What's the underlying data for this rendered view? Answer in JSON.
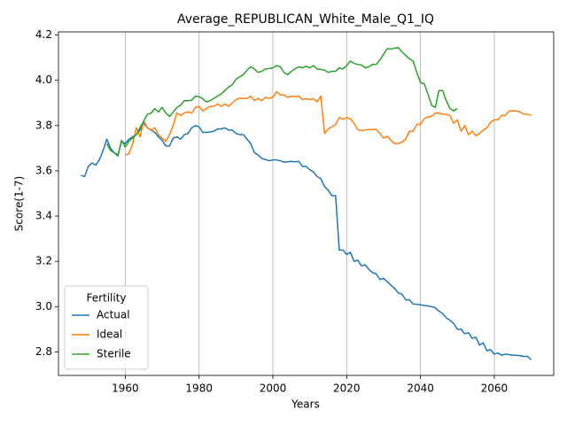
{
  "chart_data": {
    "type": "line",
    "title": "Average_REPUBLICAN_White_Male_Q1_IQ",
    "xlabel": "Years",
    "ylabel": "Score(1-7)",
    "legend_title": "Fertility",
    "legend": "lower left",
    "grid": "x",
    "xlim": [
      1941.9,
      2076.1
    ],
    "ylim": [
      2.696,
      4.214
    ],
    "xticks": [
      1960,
      1980,
      2000,
      2020,
      2040,
      2060
    ],
    "yticks": [
      2.8,
      {
        "value": 3,
        "label": "3.0"
      },
      3.2,
      3.4,
      3.6,
      3.8,
      {
        "value": 4,
        "label": "4.0"
      },
      4.2
    ],
    "x": [
      1948,
      1949,
      1950,
      1951,
      1952,
      1953,
      1954,
      1955,
      1956,
      1957,
      1958,
      1959,
      1960,
      1961,
      1962,
      1963,
      1964,
      1965,
      1966,
      1967,
      1968,
      1969,
      1970,
      1971,
      1972,
      1973,
      1974,
      1975,
      1976,
      1977,
      1978,
      1979,
      1980,
      1981,
      1982,
      1983,
      1984,
      1985,
      1986,
      1987,
      1988,
      1989,
      1990,
      1991,
      1992,
      1993,
      1994,
      1995,
      1996,
      1997,
      1998,
      1999,
      2000,
      2001,
      2002,
      2003,
      2004,
      2005,
      2006,
      2007,
      2008,
      2009,
      2010,
      2011,
      2012,
      2013,
      2014,
      2015,
      2016,
      2017,
      2018,
      2019,
      2020,
      2021,
      2022,
      2023,
      2024,
      2025,
      2026,
      2027,
      2028,
      2029,
      2030,
      2031,
      2032,
      2033,
      2034,
      2035,
      2036,
      2037,
      2038,
      2039,
      2040,
      2041,
      2042,
      2043,
      2044,
      2045,
      2046,
      2047,
      2048,
      2049,
      2050,
      2051,
      2052,
      2053,
      2054,
      2055,
      2056,
      2057,
      2058,
      2059,
      2060,
      2061,
      2062,
      2063,
      2064,
      2065,
      2066,
      2067,
      2068,
      2069,
      2070
    ],
    "series": [
      {
        "name": "Actual",
        "color": "#1f77b4",
        "values": [
          3.58,
          3.575,
          3.62,
          3.635,
          3.625,
          3.65,
          3.69,
          3.74,
          3.7,
          3.68,
          3.67,
          3.73,
          3.72,
          3.74,
          3.75,
          3.76,
          3.78,
          3.81,
          3.79,
          3.78,
          3.77,
          3.75,
          3.735,
          3.71,
          3.71,
          3.745,
          3.75,
          3.74,
          3.76,
          3.765,
          3.79,
          3.8,
          3.795,
          3.77,
          3.77,
          3.772,
          3.775,
          3.785,
          3.785,
          3.79,
          3.78,
          3.78,
          3.765,
          3.76,
          3.76,
          3.74,
          3.72,
          3.68,
          3.67,
          3.655,
          3.65,
          3.645,
          3.648,
          3.648,
          3.645,
          3.638,
          3.64,
          3.642,
          3.64,
          3.642,
          3.62,
          3.62,
          3.605,
          3.595,
          3.575,
          3.565,
          3.53,
          3.515,
          3.49,
          3.49,
          3.25,
          3.25,
          3.23,
          3.24,
          3.2,
          3.205,
          3.18,
          3.185,
          3.165,
          3.15,
          3.145,
          3.12,
          3.125,
          3.11,
          3.095,
          3.08,
          3.06,
          3.055,
          3.03,
          3.03,
          3.012,
          3.01,
          3.008,
          3.005,
          3.003,
          3.0,
          2.995,
          2.98,
          2.97,
          2.95,
          2.94,
          2.925,
          2.9,
          2.9,
          2.88,
          2.885,
          2.86,
          2.865,
          2.83,
          2.84,
          2.805,
          2.81,
          2.79,
          2.795,
          2.785,
          2.79,
          2.788,
          2.785,
          2.785,
          2.783,
          2.78,
          2.78,
          2.765
        ]
      },
      {
        "name": "Ideal",
        "color": "#ff7f0e",
        "values": [
          null,
          null,
          null,
          null,
          null,
          null,
          null,
          null,
          null,
          null,
          null,
          null,
          3.67,
          3.675,
          3.72,
          3.79,
          3.75,
          3.82,
          3.79,
          3.78,
          3.79,
          3.76,
          3.745,
          3.73,
          3.76,
          3.8,
          3.855,
          3.845,
          3.855,
          3.86,
          3.855,
          3.88,
          3.885,
          3.865,
          3.875,
          3.885,
          3.885,
          3.895,
          3.885,
          3.895,
          3.885,
          3.9,
          3.915,
          3.92,
          3.92,
          3.92,
          3.93,
          3.91,
          3.92,
          3.91,
          3.925,
          3.92,
          3.925,
          3.95,
          3.935,
          3.935,
          3.925,
          3.93,
          3.928,
          3.93,
          3.915,
          3.918,
          3.915,
          3.918,
          3.905,
          3.93,
          3.765,
          3.785,
          3.795,
          3.805,
          3.835,
          3.828,
          3.835,
          3.83,
          3.81,
          3.782,
          3.778,
          3.78,
          3.783,
          3.782,
          3.783,
          3.765,
          3.745,
          3.752,
          3.735,
          3.72,
          3.72,
          3.728,
          3.74,
          3.775,
          3.775,
          3.805,
          3.805,
          3.83,
          3.838,
          3.84,
          3.855,
          3.855,
          3.85,
          3.85,
          3.845,
          3.81,
          3.825,
          3.775,
          3.8,
          3.76,
          3.775,
          3.755,
          3.765,
          3.78,
          3.79,
          3.815,
          3.825,
          3.825,
          3.845,
          3.845,
          3.865,
          3.865,
          3.865,
          3.86,
          3.85,
          3.85,
          3.845
        ]
      },
      {
        "name": "Sterile",
        "color": "#2ca02c",
        "values": [
          null,
          null,
          null,
          null,
          null,
          null,
          null,
          3.72,
          3.69,
          3.68,
          3.665,
          3.735,
          3.705,
          3.73,
          3.745,
          3.76,
          3.79,
          3.82,
          3.85,
          3.855,
          3.875,
          3.86,
          3.88,
          3.855,
          3.84,
          3.86,
          3.88,
          3.89,
          3.91,
          3.91,
          3.912,
          3.93,
          3.928,
          3.918,
          3.905,
          3.91,
          3.92,
          3.93,
          3.94,
          3.955,
          3.97,
          3.98,
          4.005,
          4.015,
          4.025,
          4.045,
          4.06,
          4.05,
          4.035,
          4.04,
          4.05,
          4.052,
          4.055,
          4.065,
          4.06,
          4.035,
          4.025,
          4.04,
          4.05,
          4.06,
          4.055,
          4.062,
          4.055,
          4.065,
          4.05,
          4.048,
          4.045,
          4.035,
          4.04,
          4.04,
          4.055,
          4.05,
          4.065,
          4.085,
          4.075,
          4.07,
          4.068,
          4.055,
          4.06,
          4.07,
          4.07,
          4.09,
          4.115,
          4.14,
          4.138,
          4.142,
          4.145,
          4.125,
          4.11,
          4.095,
          4.085,
          4.035,
          3.99,
          3.985,
          3.94,
          3.89,
          3.88,
          3.955,
          3.955,
          3.91,
          3.875,
          3.865,
          3.875,
          null,
          null,
          null,
          null,
          null,
          null,
          null,
          null,
          null,
          null,
          null,
          null,
          null,
          null,
          null,
          null,
          null,
          null,
          null,
          null
        ]
      }
    ]
  }
}
